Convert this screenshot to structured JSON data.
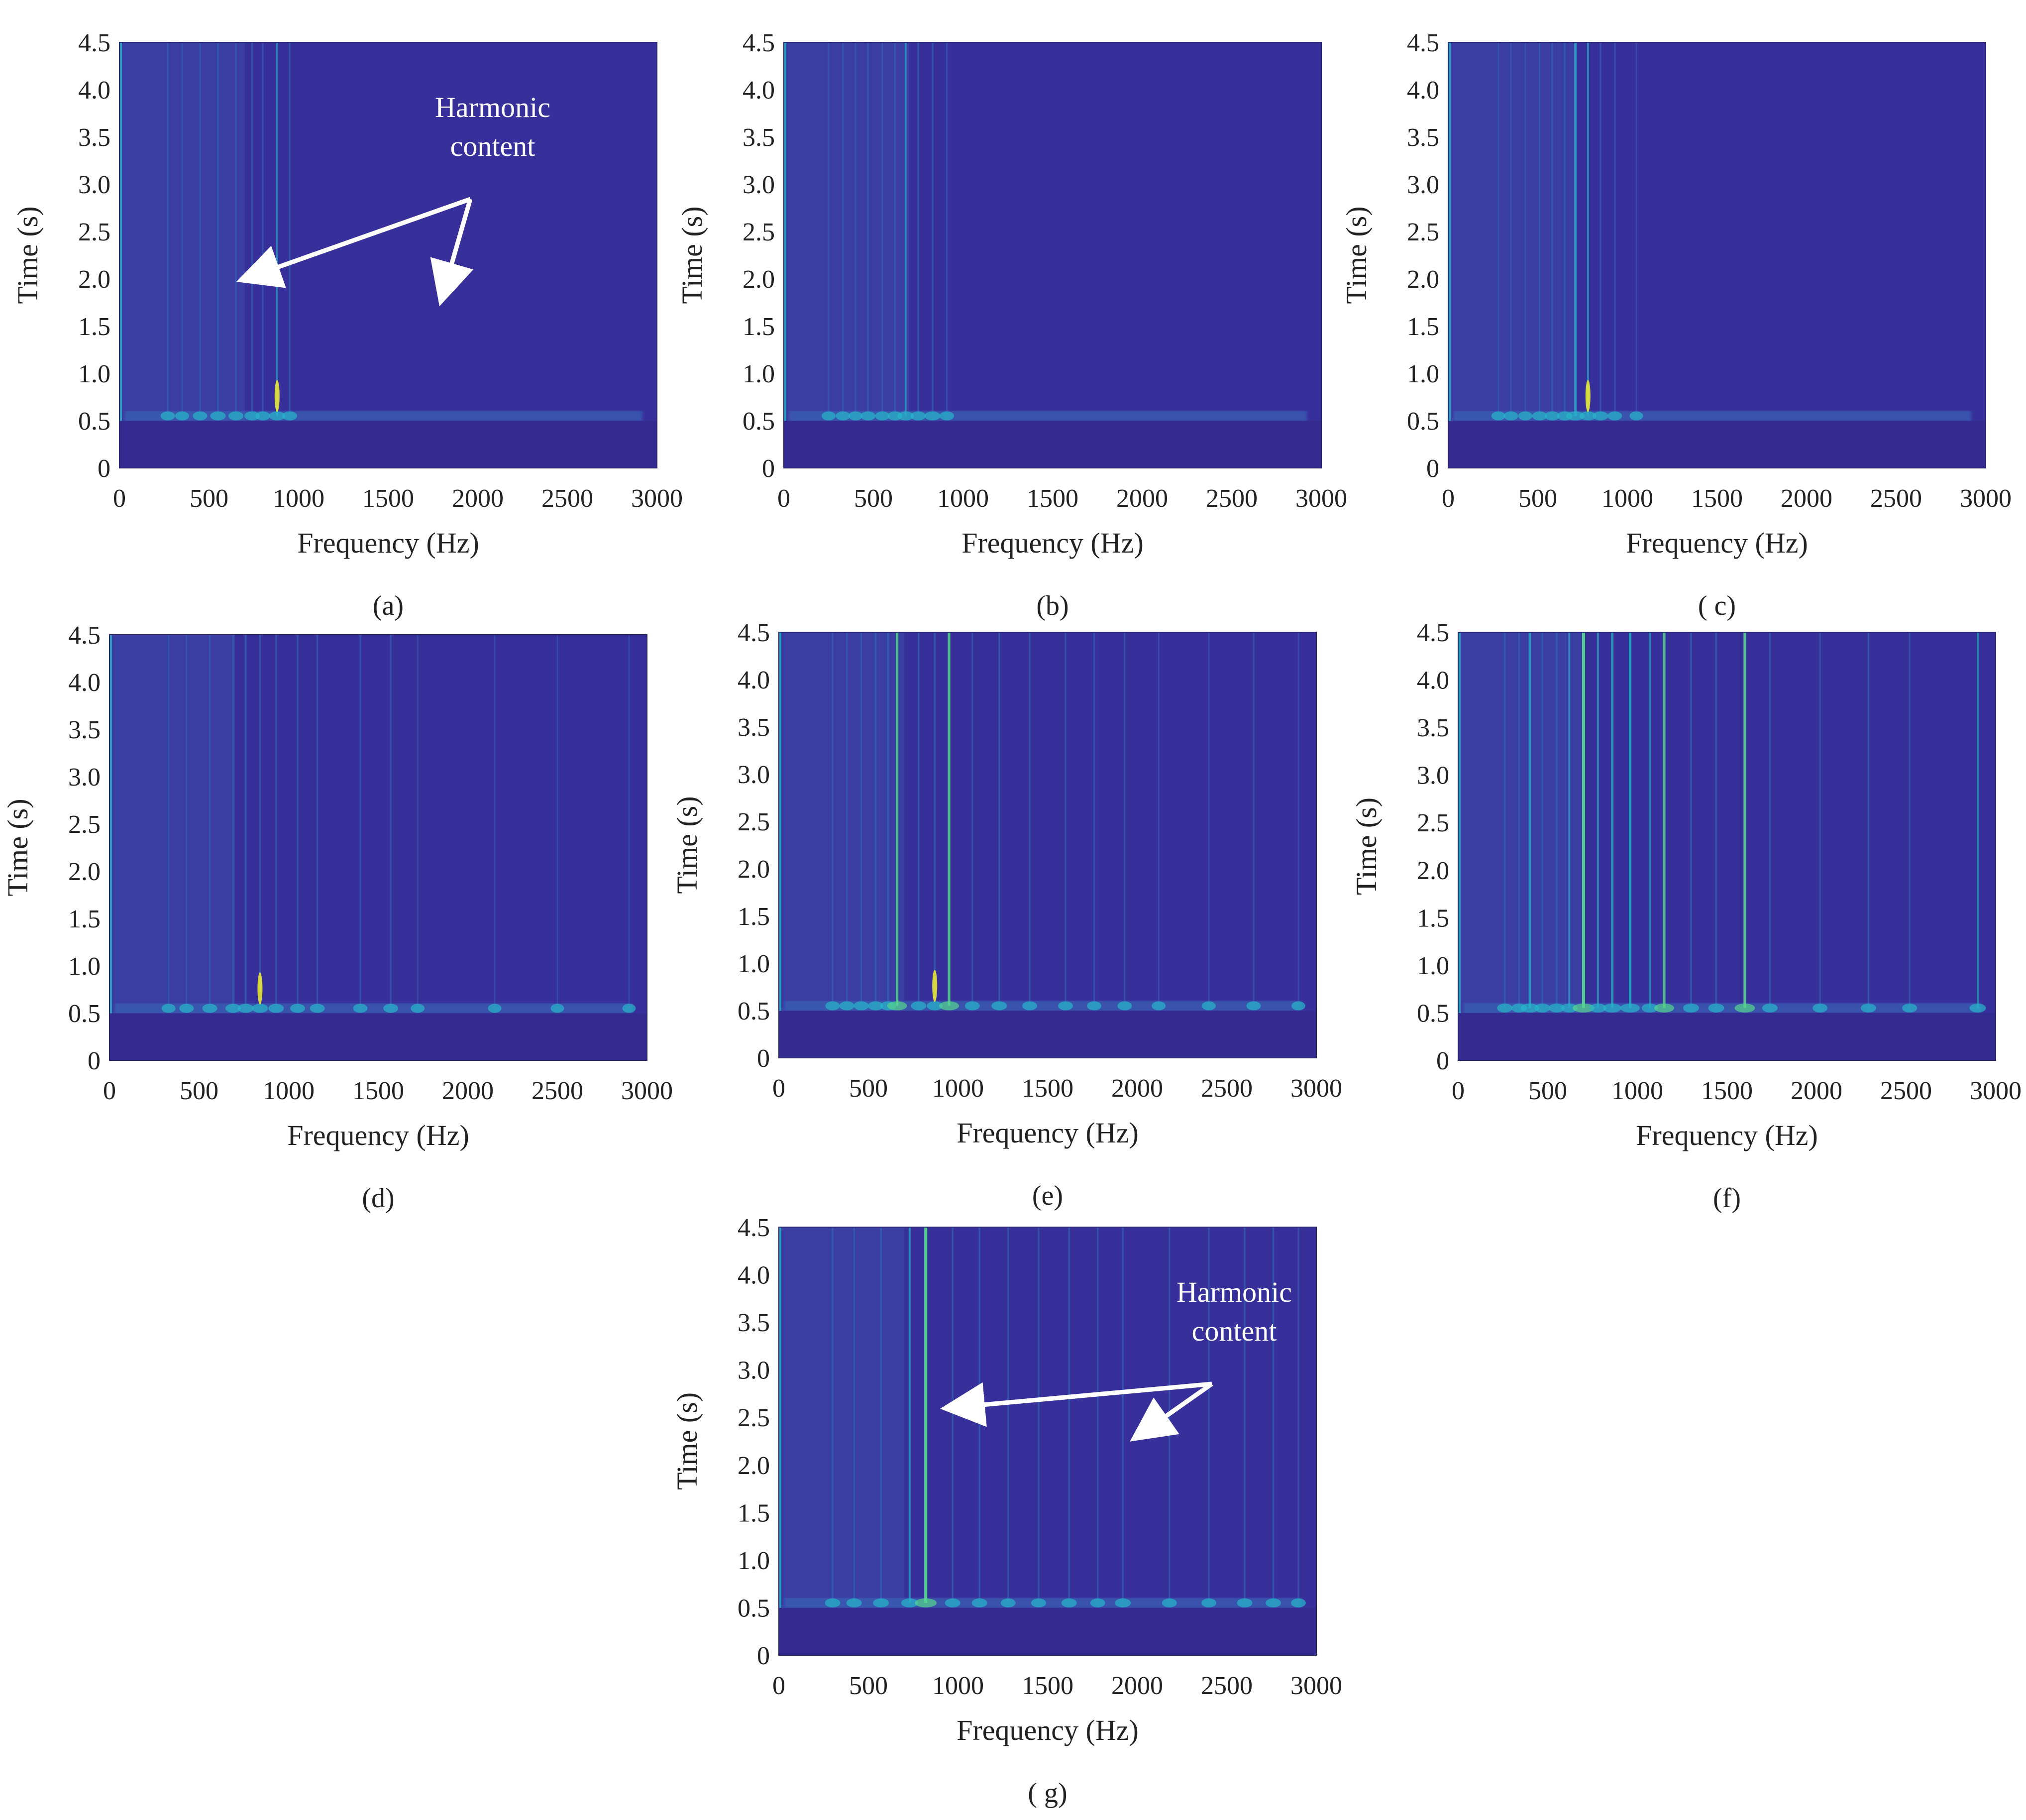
{
  "colors": {
    "background": "#38309a",
    "harmonic_low": "#2f6fb8",
    "harmonic_mid": "#27b5c9",
    "harmonic_high": "#56d58c",
    "peak": "#e8e63a",
    "annotation": "#ffffff"
  },
  "chart_data": [
    {
      "type": "heatmap",
      "panel": "(a)",
      "xlabel": "Frequency (Hz)",
      "ylabel": "Time (s)",
      "xlim": [
        0,
        3000
      ],
      "ylim": [
        0,
        4.5
      ],
      "xticks": [
        0,
        500,
        1000,
        1500,
        2000,
        2500,
        3000
      ],
      "yticks": [
        0,
        0.5,
        1.0,
        1.5,
        2.0,
        2.5,
        3.0,
        3.5,
        4.0,
        4.5
      ],
      "onset_time_s": 0.55,
      "harmonics": [
        {
          "f": 270,
          "level": 0.25
        },
        {
          "f": 350,
          "level": 0.2
        },
        {
          "f": 450,
          "level": 0.25
        },
        {
          "f": 550,
          "level": 0.35
        },
        {
          "f": 650,
          "level": 0.3
        },
        {
          "f": 740,
          "level": 0.35
        },
        {
          "f": 800,
          "level": 0.3
        },
        {
          "f": 880,
          "level": 0.45,
          "peak": 1.0
        },
        {
          "f": 950,
          "level": 0.3
        }
      ],
      "annotation": {
        "line1": "Harmonic",
        "line2": "content",
        "targets": [
          [
            700,
            2.0
          ],
          [
            1800,
            1.8
          ]
        ]
      }
    },
    {
      "type": "heatmap",
      "panel": "(b)",
      "xlabel": "Frequency (Hz)",
      "ylabel": "Time (s)",
      "xlim": [
        0,
        3000
      ],
      "ylim": [
        0,
        4.5
      ],
      "xticks": [
        0,
        500,
        1000,
        1500,
        2000,
        2500,
        3000
      ],
      "yticks": [
        0,
        0.5,
        1.0,
        1.5,
        2.0,
        2.5,
        3.0,
        3.5,
        4.0,
        4.5
      ],
      "onset_time_s": 0.55,
      "harmonics": [
        {
          "f": 250,
          "level": 0.2
        },
        {
          "f": 330,
          "level": 0.25
        },
        {
          "f": 400,
          "level": 0.2
        },
        {
          "f": 470,
          "level": 0.3
        },
        {
          "f": 550,
          "level": 0.25
        },
        {
          "f": 620,
          "level": 0.3
        },
        {
          "f": 680,
          "level": 0.45
        },
        {
          "f": 750,
          "level": 0.35
        },
        {
          "f": 830,
          "level": 0.4
        },
        {
          "f": 910,
          "level": 0.25
        }
      ]
    },
    {
      "type": "heatmap",
      "panel": "( c)",
      "xlabel": "Frequency (Hz)",
      "ylabel": "Time (s)",
      "xlim": [
        0,
        3000
      ],
      "ylim": [
        0,
        4.5
      ],
      "xticks": [
        0,
        500,
        1000,
        1500,
        2000,
        2500,
        3000
      ],
      "yticks": [
        0,
        0.5,
        1.0,
        1.5,
        2.0,
        2.5,
        3.0,
        3.5,
        4.0,
        4.5
      ],
      "onset_time_s": 0.55,
      "harmonics": [
        {
          "f": 280,
          "level": 0.2
        },
        {
          "f": 350,
          "level": 0.25
        },
        {
          "f": 430,
          "level": 0.2
        },
        {
          "f": 510,
          "level": 0.3
        },
        {
          "f": 580,
          "level": 0.3
        },
        {
          "f": 650,
          "level": 0.35
        },
        {
          "f": 710,
          "level": 0.7
        },
        {
          "f": 780,
          "level": 0.5,
          "peak": 0.9
        },
        {
          "f": 850,
          "level": 0.35
        },
        {
          "f": 930,
          "level": 0.25
        },
        {
          "f": 1050,
          "level": 0.15
        }
      ]
    },
    {
      "type": "heatmap",
      "panel": "(d)",
      "xlabel": "Frequency (Hz)",
      "ylabel": "Time (s)",
      "xlim": [
        0,
        3000
      ],
      "ylim": [
        0,
        4.5
      ],
      "xticks": [
        0,
        500,
        1000,
        1500,
        2000,
        2500,
        3000
      ],
      "yticks": [
        0,
        0.5,
        1.0,
        1.5,
        2.0,
        2.5,
        3.0,
        3.5,
        4.0,
        4.5
      ],
      "onset_time_s": 0.55,
      "harmonics": [
        {
          "f": 330,
          "level": 0.2
        },
        {
          "f": 430,
          "level": 0.25
        },
        {
          "f": 560,
          "level": 0.3
        },
        {
          "f": 690,
          "level": 0.35
        },
        {
          "f": 760,
          "level": 0.4
        },
        {
          "f": 840,
          "level": 0.4,
          "peak": 1.0
        },
        {
          "f": 930,
          "level": 0.35
        },
        {
          "f": 1050,
          "level": 0.3
        },
        {
          "f": 1160,
          "level": 0.3
        },
        {
          "f": 1400,
          "level": 0.25
        },
        {
          "f": 1570,
          "level": 0.3
        },
        {
          "f": 1720,
          "level": 0.2
        },
        {
          "f": 2150,
          "level": 0.15
        },
        {
          "f": 2500,
          "level": 0.15
        },
        {
          "f": 2900,
          "level": 0.15
        }
      ]
    },
    {
      "type": "heatmap",
      "panel": "(e)",
      "xlabel": "Frequency (Hz)",
      "ylabel": "Time (s)",
      "xlim": [
        0,
        3000
      ],
      "ylim": [
        0,
        4.5
      ],
      "xticks": [
        0,
        500,
        1000,
        1500,
        2000,
        2500,
        3000
      ],
      "yticks": [
        0,
        0.5,
        1.0,
        1.5,
        2.0,
        2.5,
        3.0,
        3.5,
        4.0,
        4.5
      ],
      "onset_time_s": 0.55,
      "harmonics": [
        {
          "f": 300,
          "level": 0.25
        },
        {
          "f": 380,
          "level": 0.3
        },
        {
          "f": 460,
          "level": 0.3
        },
        {
          "f": 540,
          "level": 0.35
        },
        {
          "f": 610,
          "level": 0.4
        },
        {
          "f": 660,
          "level": 0.8
        },
        {
          "f": 780,
          "level": 0.35
        },
        {
          "f": 870,
          "level": 0.4,
          "peak": 1.0
        },
        {
          "f": 950,
          "level": 0.8
        },
        {
          "f": 1080,
          "level": 0.3
        },
        {
          "f": 1230,
          "level": 0.35
        },
        {
          "f": 1400,
          "level": 0.3
        },
        {
          "f": 1600,
          "level": 0.3
        },
        {
          "f": 1760,
          "level": 0.25
        },
        {
          "f": 1930,
          "level": 0.25
        },
        {
          "f": 2120,
          "level": 0.2
        },
        {
          "f": 2400,
          "level": 0.2
        },
        {
          "f": 2650,
          "level": 0.25
        },
        {
          "f": 2900,
          "level": 0.2
        }
      ]
    },
    {
      "type": "heatmap",
      "panel": "(f)",
      "xlabel": "Frequency (Hz)",
      "ylabel": "Time (s)",
      "xlim": [
        0,
        3000
      ],
      "ylim": [
        0,
        4.5
      ],
      "xticks": [
        0,
        500,
        1000,
        1500,
        2000,
        2500,
        3000
      ],
      "yticks": [
        0,
        0.5,
        1.0,
        1.5,
        2.0,
        2.5,
        3.0,
        3.5,
        4.0,
        4.5
      ],
      "onset_time_s": 0.55,
      "harmonics": [
        {
          "f": 260,
          "level": 0.35
        },
        {
          "f": 340,
          "level": 0.35
        },
        {
          "f": 400,
          "level": 0.7
        },
        {
          "f": 470,
          "level": 0.35
        },
        {
          "f": 550,
          "level": 0.4
        },
        {
          "f": 620,
          "level": 0.45
        },
        {
          "f": 700,
          "level": 1.0
        },
        {
          "f": 780,
          "level": 0.5
        },
        {
          "f": 860,
          "level": 0.65
        },
        {
          "f": 960,
          "level": 0.75
        },
        {
          "f": 1070,
          "level": 0.45
        },
        {
          "f": 1150,
          "level": 0.8
        },
        {
          "f": 1300,
          "level": 0.4
        },
        {
          "f": 1440,
          "level": 0.4
        },
        {
          "f": 1600,
          "level": 0.85
        },
        {
          "f": 1740,
          "level": 0.35
        },
        {
          "f": 2020,
          "level": 0.3
        },
        {
          "f": 2290,
          "level": 0.35
        },
        {
          "f": 2520,
          "level": 0.3
        },
        {
          "f": 2900,
          "level": 0.45
        }
      ]
    },
    {
      "type": "heatmap",
      "panel": "( g)",
      "xlabel": "Frequency (Hz)",
      "ylabel": "Time (s)",
      "xlim": [
        0,
        3000
      ],
      "ylim": [
        0,
        4.5
      ],
      "xticks": [
        0,
        500,
        1000,
        1500,
        2000,
        2500,
        3000
      ],
      "yticks": [
        0,
        0.5,
        1.0,
        1.5,
        2.0,
        2.5,
        3.0,
        3.5,
        4.0,
        4.5
      ],
      "onset_time_s": 0.55,
      "harmonics": [
        {
          "f": 300,
          "level": 0.35
        },
        {
          "f": 420,
          "level": 0.35
        },
        {
          "f": 570,
          "level": 0.4
        },
        {
          "f": 730,
          "level": 0.5
        },
        {
          "f": 820,
          "level": 1.0
        },
        {
          "f": 970,
          "level": 0.35
        },
        {
          "f": 1120,
          "level": 0.35
        },
        {
          "f": 1280,
          "level": 0.3
        },
        {
          "f": 1450,
          "level": 0.3
        },
        {
          "f": 1620,
          "level": 0.35
        },
        {
          "f": 1780,
          "level": 0.3
        },
        {
          "f": 1920,
          "level": 0.4
        },
        {
          "f": 2180,
          "level": 0.3
        },
        {
          "f": 2400,
          "level": 0.3
        },
        {
          "f": 2600,
          "level": 0.35
        },
        {
          "f": 2760,
          "level": 0.35
        },
        {
          "f": 2900,
          "level": 0.3
        }
      ],
      "annotation": {
        "line1": "Harmonic",
        "line2": "content",
        "targets": [
          [
            950,
            2.6
          ],
          [
            2000,
            2.3
          ]
        ]
      }
    }
  ]
}
